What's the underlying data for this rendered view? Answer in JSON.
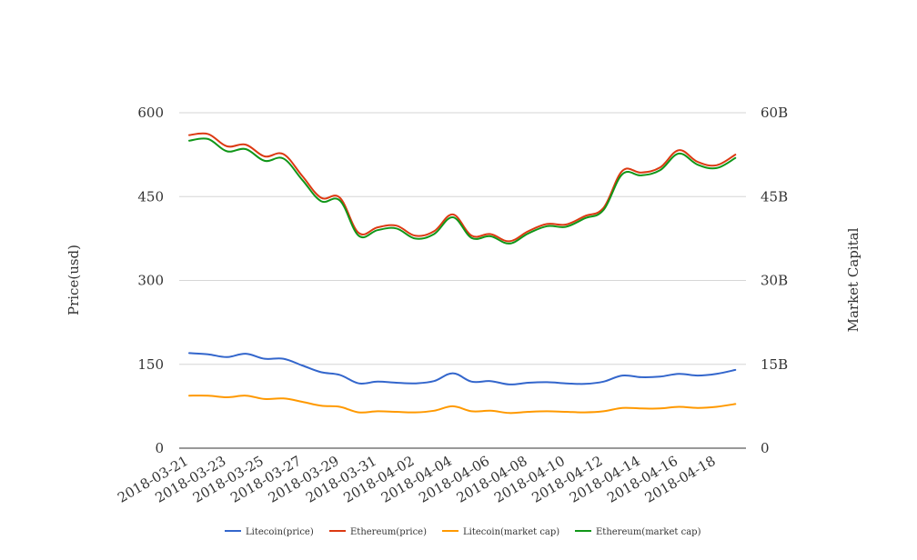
{
  "chart_data": {
    "type": "line",
    "x": [
      "2018-03-21",
      "2018-03-22",
      "2018-03-23",
      "2018-03-24",
      "2018-03-25",
      "2018-03-26",
      "2018-03-27",
      "2018-03-28",
      "2018-03-29",
      "2018-03-30",
      "2018-03-31",
      "2018-04-01",
      "2018-04-02",
      "2018-04-03",
      "2018-04-04",
      "2018-04-05",
      "2018-04-06",
      "2018-04-07",
      "2018-04-08",
      "2018-04-09",
      "2018-04-10",
      "2018-04-11",
      "2018-04-12",
      "2018-04-13",
      "2018-04-14",
      "2018-04-15",
      "2018-04-16",
      "2018-04-17",
      "2018-04-18",
      "2018-04-19"
    ],
    "x_tick_labels": [
      "2018-03-21",
      "2018-03-23",
      "2018-03-25",
      "2018-03-27",
      "2018-03-29",
      "2018-03-31",
      "2018-04-02",
      "2018-04-04",
      "2018-04-06",
      "2018-04-08",
      "2018-04-10",
      "2018-04-12",
      "2018-04-14",
      "2018-04-16",
      "2018-04-18"
    ],
    "ylabel_left": "Price(usd)",
    "ylabel_right": "Market Capital",
    "ylim_left": [
      0,
      600
    ],
    "ylim_right": [
      0,
      60000000000
    ],
    "y_ticks_left": [
      "0",
      "150",
      "300",
      "450",
      "600"
    ],
    "y_ticks_right": [
      "0",
      "15B",
      "30B",
      "45B",
      "60B"
    ],
    "grid": true,
    "legend_position": "bottom",
    "series": [
      {
        "name": "Litecoin(price)",
        "axis": "left",
        "color": "#3366cc",
        "values": [
          170,
          168,
          163,
          169,
          160,
          160,
          148,
          136,
          131,
          116,
          119,
          117,
          116,
          120,
          134,
          119,
          120,
          114,
          117,
          118,
          116,
          115,
          119,
          130,
          127,
          128,
          133,
          130,
          133,
          140
        ]
      },
      {
        "name": "Ethereum(price)",
        "axis": "left",
        "color": "#dc3912",
        "values": [
          560,
          562,
          540,
          543,
          522,
          526,
          487,
          448,
          448,
          385,
          395,
          398,
          380,
          388,
          418,
          380,
          383,
          370,
          388,
          401,
          400,
          415,
          430,
          496,
          493,
          502,
          533,
          512,
          506,
          525
        ]
      },
      {
        "name": "Litecoin(market cap)",
        "axis": "right",
        "color": "#ff9900",
        "values": [
          9400000000,
          9400000000,
          9100000000,
          9400000000,
          8800000000,
          8900000000,
          8300000000,
          7600000000,
          7400000000,
          6400000000,
          6600000000,
          6500000000,
          6400000000,
          6700000000,
          7500000000,
          6600000000,
          6700000000,
          6300000000,
          6500000000,
          6600000000,
          6500000000,
          6400000000,
          6600000000,
          7200000000,
          7100000000,
          7100000000,
          7400000000,
          7200000000,
          7400000000,
          7900000000
        ]
      },
      {
        "name": "Ethereum(market cap)",
        "axis": "right",
        "color": "#109618",
        "values": [
          55000000000,
          55300000000,
          53100000000,
          53500000000,
          51400000000,
          51800000000,
          48000000000,
          44200000000,
          44300000000,
          38000000000,
          39000000000,
          39300000000,
          37500000000,
          38300000000,
          41300000000,
          37600000000,
          37900000000,
          36600000000,
          38400000000,
          39700000000,
          39600000000,
          41100000000,
          42600000000,
          49000000000,
          48800000000,
          49700000000,
          52700000000,
          50700000000,
          50100000000,
          51900000000
        ]
      }
    ]
  }
}
